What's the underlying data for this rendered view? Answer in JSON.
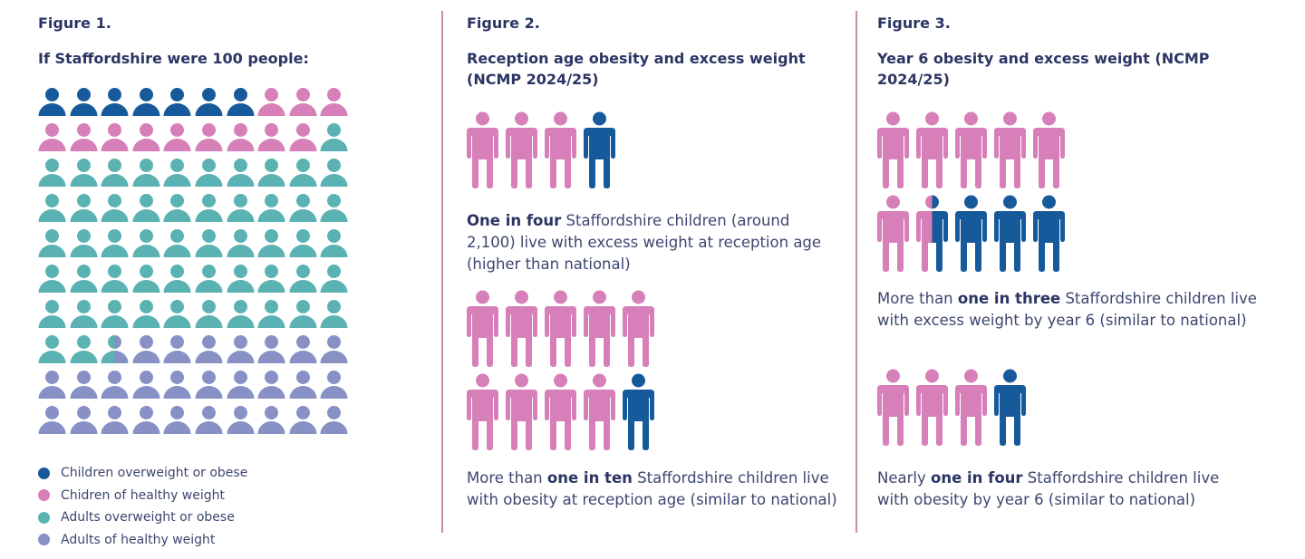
{
  "colors": {
    "children_overweight": "#175a9b",
    "children_healthy": "#d77fb8",
    "adults_overweight": "#5bb2b2",
    "adults_healthy": "#8791c6"
  },
  "figure1": {
    "label": "Figure 1.",
    "title": "If Staffordshire were 100 people:",
    "counts": {
      "children_overweight": 7,
      "children_healthy": 12,
      "adults_overweight": 53.5,
      "adults_healthy": 27.5
    },
    "legend": [
      {
        "key": "children_overweight",
        "label": "Children overweight or obese"
      },
      {
        "key": "children_healthy",
        "label": "Chidren of healthy weight"
      },
      {
        "key": "adults_overweight",
        "label": "Adults overweight or obese"
      },
      {
        "key": "adults_healthy",
        "label": "Adults of healthy weight"
      }
    ]
  },
  "figure2": {
    "label": "Figure 2.",
    "title": "Reception age obesity and excess weight (NCMP 2024/25)",
    "groups": [
      {
        "total": 4,
        "highlighted": 1,
        "text_pre": "",
        "text_bold": "One in four",
        "text_post": " Staffordshire children (around 2,100) live with excess weight at reception age (higher than national)"
      },
      {
        "total": 10,
        "highlighted": 1,
        "text_pre": "More than ",
        "text_bold": "one in ten",
        "text_post": " Staffordshire children live with obesity at reception age (similar to national)"
      }
    ]
  },
  "figure3": {
    "label": "Figure 3.",
    "title": "Year 6 obesity and excess weight (NCMP 2024/25)",
    "groups": [
      {
        "total": 10,
        "highlighted": 3.5,
        "text_pre": "More than ",
        "text_bold": "one in three",
        "text_post": " Staffordshire children live with excess weight by year 6 (similar to national)"
      },
      {
        "total": 4,
        "highlighted": 1,
        "text_pre": "Nearly ",
        "text_bold": "one in four",
        "text_post": " Staffordshire children live with obesity by year 6 (similar to national)"
      }
    ]
  }
}
